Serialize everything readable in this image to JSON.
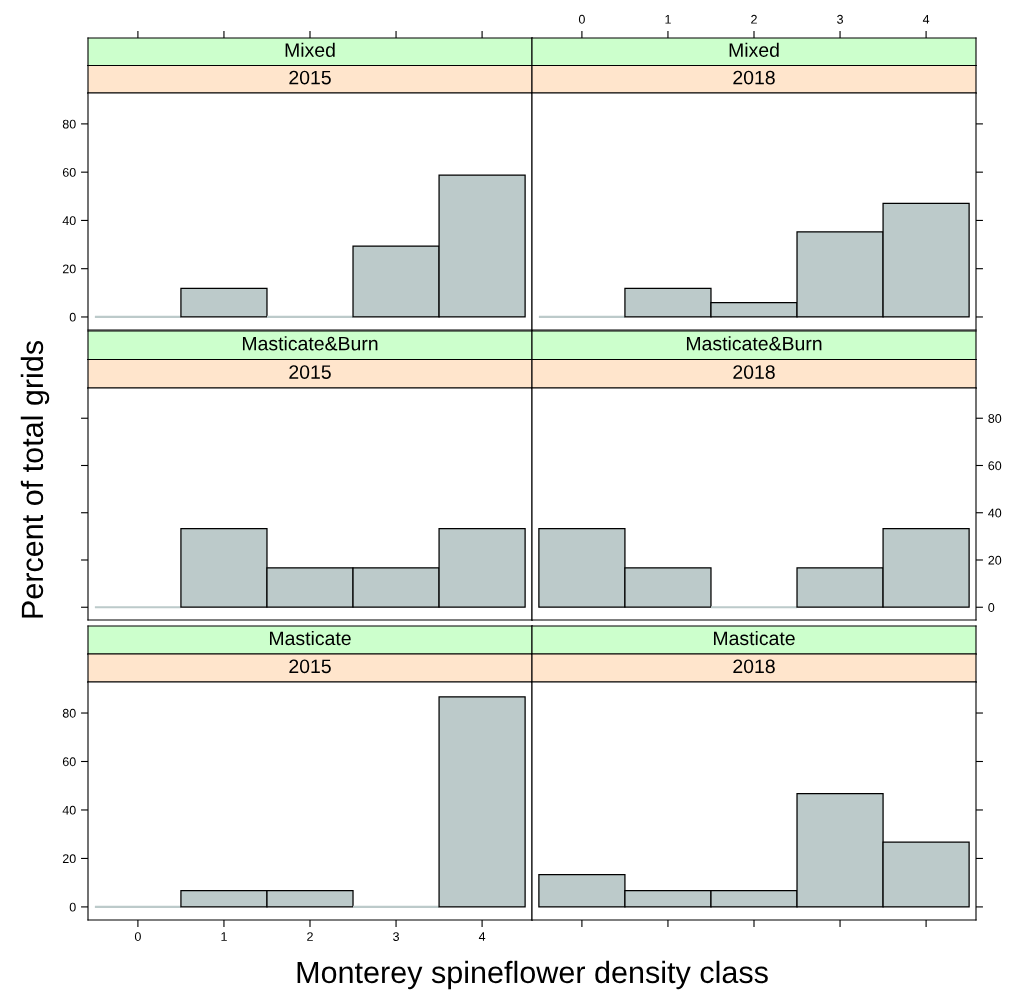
{
  "chart_data": [
    {
      "type": "histogram",
      "title": "Mixed",
      "subtitle": "2015",
      "bins": [
        -0.5,
        0.5,
        1.5,
        2.5,
        3.5,
        4.5
      ],
      "values": [
        0,
        11.8,
        0,
        29.4,
        58.8
      ],
      "color": "#bccaca",
      "xlim": [
        -0.58,
        4.58
      ],
      "ylim": [
        -5.4,
        92.8
      ],
      "xticks": [
        0,
        1,
        2,
        3,
        4
      ],
      "yticks": [
        0,
        20,
        40,
        60,
        80
      ],
      "tick_labels": "y"
    },
    {
      "type": "histogram",
      "title": "Mixed",
      "subtitle": "2018",
      "bins": [
        -0.5,
        0.5,
        1.5,
        2.5,
        3.5,
        4.5
      ],
      "values": [
        0,
        11.8,
        5.9,
        35.3,
        47.1
      ],
      "color": "#bccaca",
      "xlim": [
        -0.58,
        4.58
      ],
      "ylim": [
        -5.4,
        92.8
      ],
      "xticks": [
        0,
        1,
        2,
        3,
        4
      ],
      "yticks": [
        0,
        20,
        40,
        60,
        80
      ],
      "tick_labels": "x"
    },
    {
      "type": "histogram",
      "title": "Masticate&Burn",
      "subtitle": "2015",
      "ylabel": "Percent of total grids",
      "bins": [
        -0.5,
        0.5,
        1.5,
        2.5,
        3.5,
        4.5
      ],
      "values": [
        0,
        33.3,
        16.7,
        16.7,
        33.3
      ],
      "color": "#bccaca",
      "xlim": [
        -0.58,
        4.58
      ],
      "ylim": [
        -5.4,
        92.8
      ],
      "yticks": [
        0,
        20,
        40,
        60,
        80
      ],
      "tick_labels": false
    },
    {
      "type": "histogram",
      "title": "Masticate&Burn",
      "subtitle": "2018",
      "bins": [
        -0.5,
        0.5,
        1.5,
        2.5,
        3.5,
        4.5
      ],
      "values": [
        33.3,
        16.7,
        0,
        16.7,
        33.3
      ],
      "color": "#bccaca",
      "xlim": [
        -0.58,
        4.58
      ],
      "ylim": [
        -5.4,
        92.8
      ],
      "yticks": [
        0,
        20,
        40,
        60,
        80
      ],
      "tick_labels": "y"
    },
    {
      "type": "histogram",
      "title": "Masticate",
      "subtitle": "2015",
      "xlabel": "Monterey spineflower density class",
      "bins": [
        -0.5,
        0.5,
        1.5,
        2.5,
        3.5,
        4.5
      ],
      "values": [
        0,
        6.7,
        6.7,
        0,
        86.7
      ],
      "color": "#bccaca",
      "xlim": [
        -0.58,
        4.58
      ],
      "ylim": [
        -5.4,
        92.8
      ],
      "xticks": [
        0,
        1,
        2,
        3,
        4
      ],
      "yticks": [
        0,
        20,
        40,
        60,
        80
      ]
    },
    {
      "type": "histogram",
      "title": "Masticate",
      "subtitle": "2018",
      "bins": [
        -0.5,
        0.5,
        1.5,
        2.5,
        3.5,
        4.5
      ],
      "values": [
        13.3,
        6.7,
        6.7,
        46.7,
        26.7
      ],
      "color": "#bccaca",
      "xlim": [
        -0.58,
        4.58
      ],
      "ylim": [
        -5.4,
        92.8
      ],
      "xticks": [
        0,
        1,
        2,
        3,
        4
      ],
      "yticks": [
        0,
        20,
        40,
        60,
        80
      ],
      "tick_labels": false
    }
  ]
}
